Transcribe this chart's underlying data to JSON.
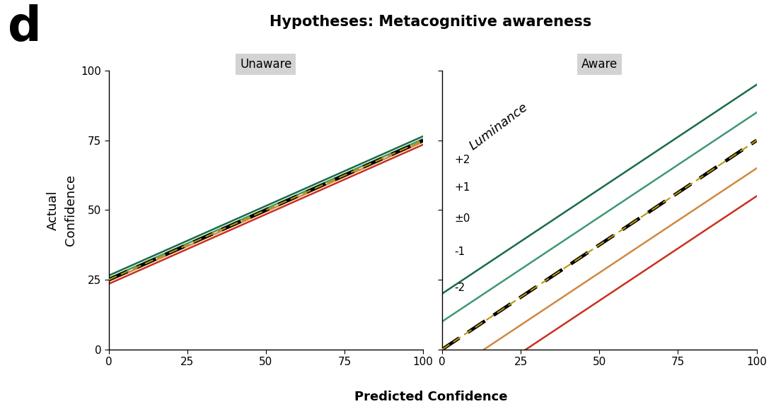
{
  "title": "Hypotheses: Metacognitive awareness",
  "panel_label": "d",
  "facet_labels": [
    "Unaware",
    "Aware"
  ],
  "xlabel": "Predicted Confidence",
  "ylabel": "Actual\nConfidence",
  "xlim": [
    0,
    100
  ],
  "ylim": [
    0,
    100
  ],
  "xticks": [
    0,
    25,
    50,
    75,
    100
  ],
  "yticks": [
    0,
    25,
    50,
    75,
    100
  ],
  "luminance_label": "Luminance",
  "legend_labels": [
    "+2",
    "+1",
    "±0",
    "-1",
    "-2"
  ],
  "colors": [
    "#1a6b44",
    "#3d9970",
    "#b8960a",
    "#d08840",
    "#c83020"
  ],
  "unaware_intercepts": [
    26.5,
    25.5,
    25.0,
    24.5,
    23.5
  ],
  "unaware_slope": 0.5,
  "aware_intercepts": [
    20,
    10,
    0,
    -10,
    -20
  ],
  "aware_slope": 0.75,
  "dashed_index": 2,
  "background_color": "#ffffff",
  "facet_bg": "#d3d3d3",
  "title_fontsize": 15,
  "axis_label_fontsize": 13,
  "tick_fontsize": 11,
  "facet_fontsize": 12,
  "line_width": 1.8
}
